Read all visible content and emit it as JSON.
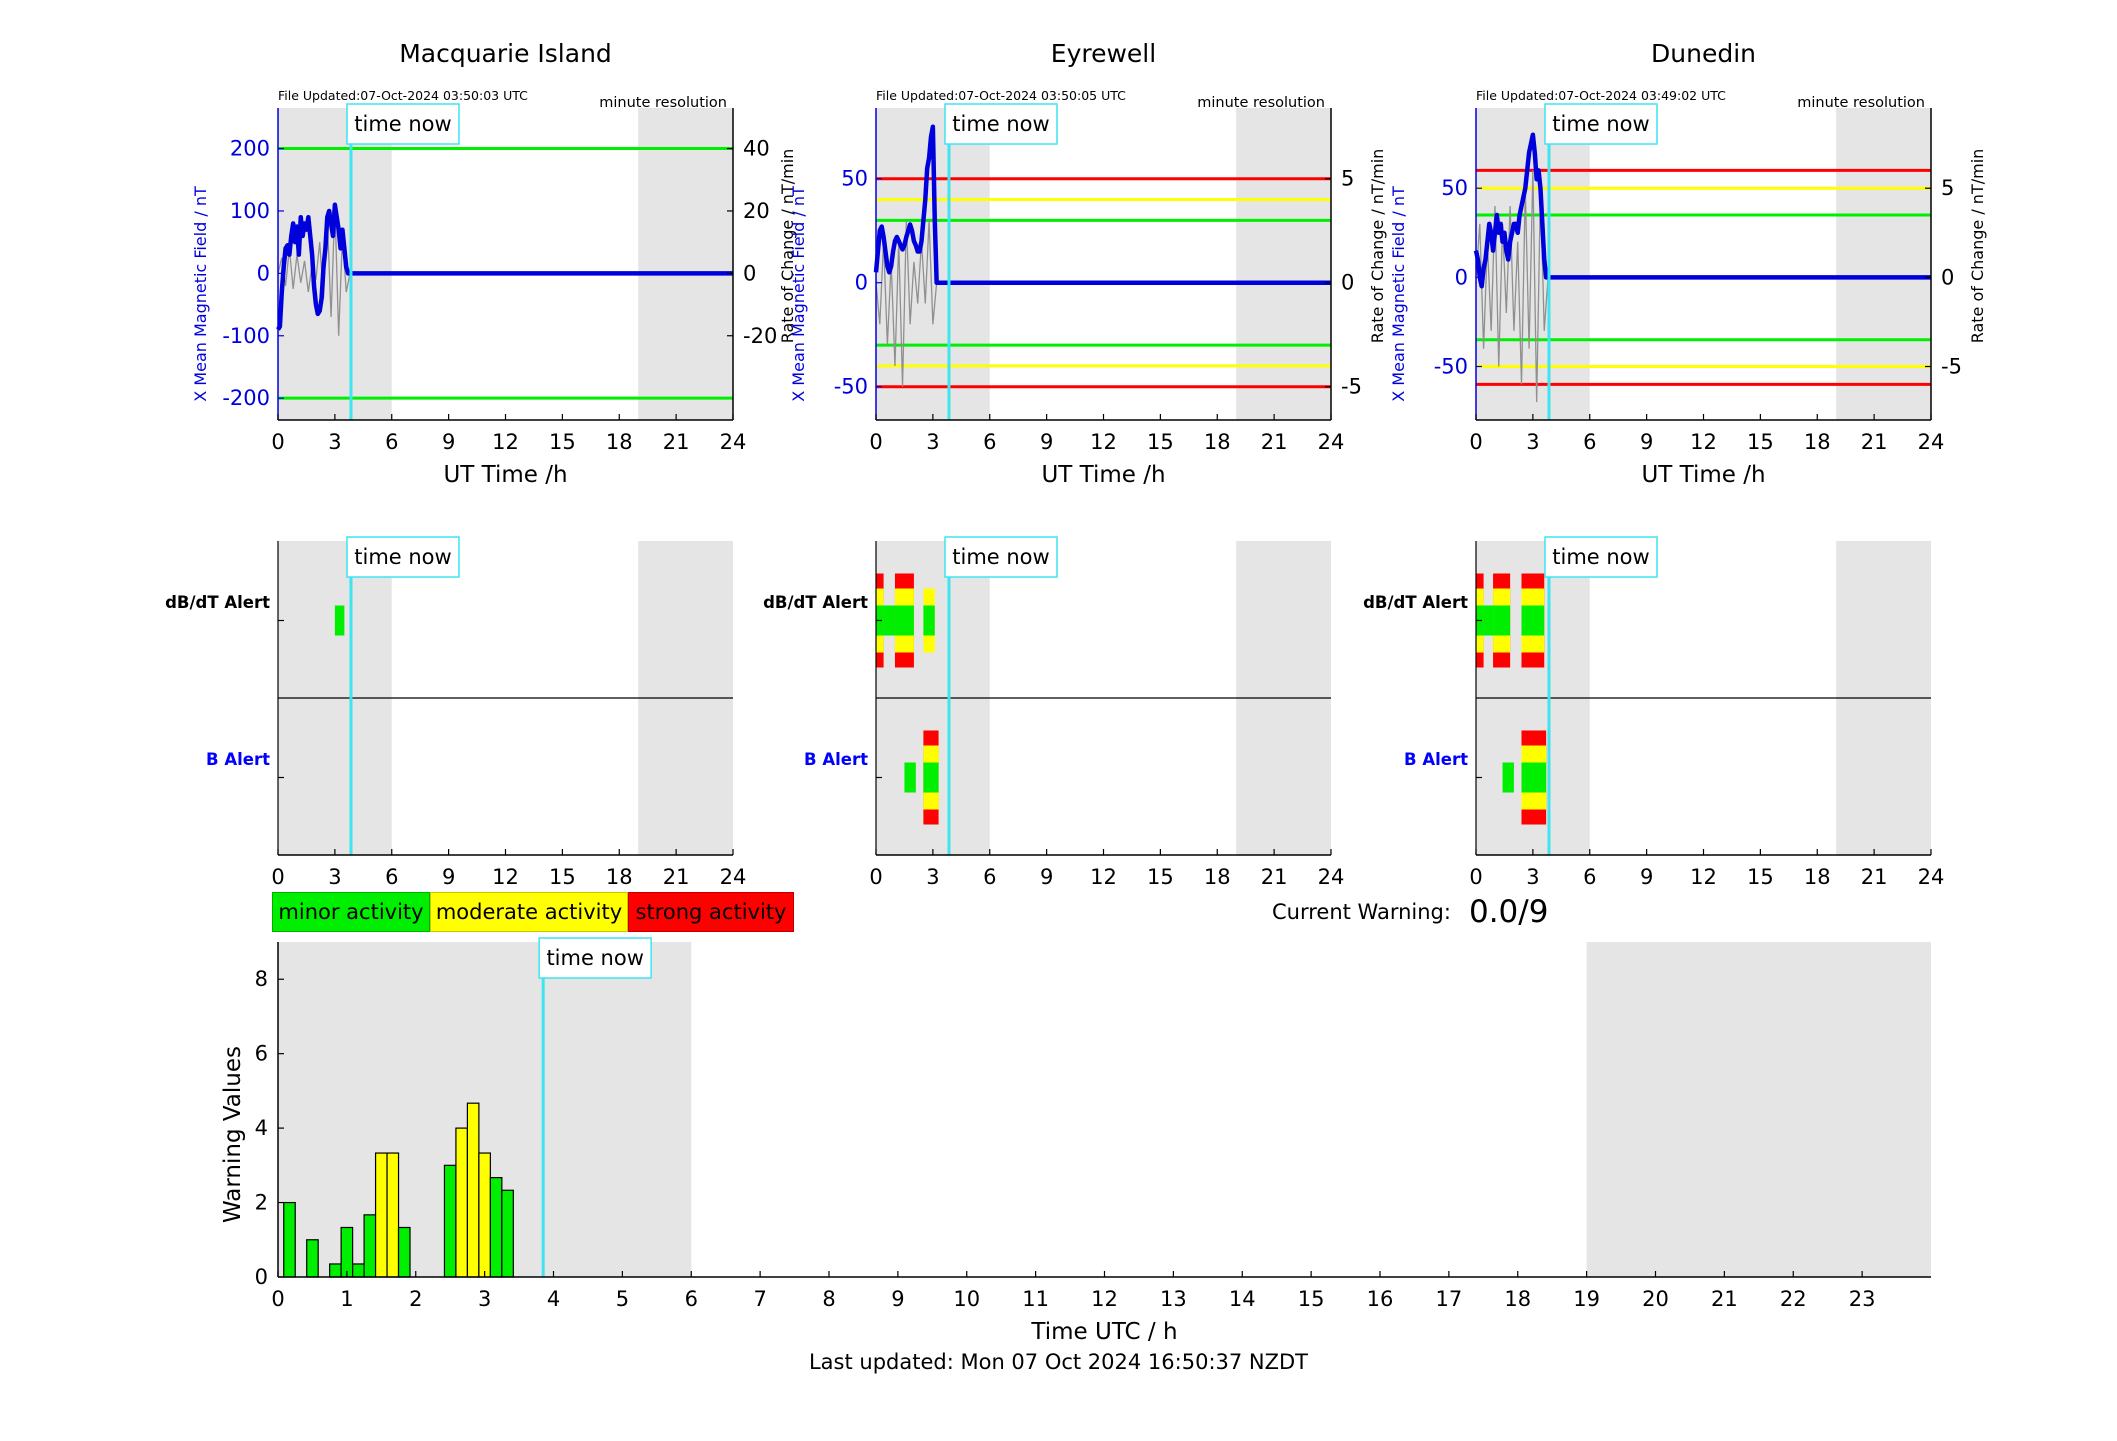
{
  "colors": {
    "shade": "#e5e5e5",
    "field": "#0000dd",
    "rate": "#909090",
    "timeNow": "#3ee4f0",
    "green": "#00ee00",
    "yellow": "#ffff00",
    "red": "#ff0000",
    "axis": "#000000"
  },
  "legend": {
    "minor": "minor activity",
    "moderate": "moderate activity",
    "strong": "strong activity"
  },
  "current_warning": {
    "label": "Current Warning:",
    "value": "0.0/9"
  },
  "footer": {
    "last_updated": "Last updated: Mon 07 Oct 2024 16:50:37 NZDT"
  },
  "chart_data": [
    {
      "type": "line",
      "id": "macquarie-field",
      "title": "Macquarie Island",
      "file_updated": "File Updated:07-Oct-2024 03:50:03 UTC",
      "resolution": "minute resolution",
      "time_now_label": "time now",
      "time_now": 3.85,
      "xlabel": "UT Time /h",
      "ylabel_left": "X Mean Magnetic Field / nT",
      "ylabel_right": "Rate of Change / nT/min",
      "xlim": [
        0,
        24
      ],
      "xticks": [
        0,
        3,
        6,
        9,
        12,
        15,
        18,
        21,
        24
      ],
      "ylim_left": [
        -235,
        265
      ],
      "yticks_left": [
        -200,
        -100,
        0,
        100,
        200
      ],
      "ylim_right": [
        -47,
        53
      ],
      "yticks_right": [
        -20,
        0,
        20,
        40
      ],
      "shaded": [
        [
          0,
          6
        ],
        [
          19,
          24
        ]
      ],
      "thresholds": [
        {
          "value": 200,
          "level": "minor"
        },
        {
          "value": -200,
          "level": "minor"
        }
      ],
      "series": [
        {
          "axis": "left",
          "x": [
            0,
            0.1,
            0.2,
            0.3,
            0.4,
            0.5,
            0.6,
            0.7,
            0.8,
            0.9,
            1.0,
            1.1,
            1.2,
            1.3,
            1.4,
            1.5,
            1.6,
            1.7,
            1.8,
            1.9,
            2.0,
            2.1,
            2.2,
            2.3,
            2.4,
            2.5,
            2.6,
            2.7,
            2.8,
            2.9,
            3.0,
            3.1,
            3.2,
            3.3,
            3.4,
            3.5,
            3.6,
            3.7,
            3.8,
            24
          ],
          "y": [
            -90,
            -85,
            -30,
            10,
            40,
            45,
            30,
            60,
            80,
            50,
            75,
            30,
            90,
            60,
            80,
            70,
            90,
            60,
            30,
            -20,
            -50,
            -65,
            -60,
            -40,
            10,
            40,
            90,
            100,
            80,
            60,
            110,
            90,
            70,
            40,
            70,
            40,
            10,
            0,
            0,
            0
          ]
        },
        {
          "axis": "right",
          "x": [
            0,
            0.2,
            0.4,
            0.6,
            0.8,
            1.0,
            1.2,
            1.4,
            1.6,
            1.8,
            2.0,
            2.2,
            2.4,
            2.6,
            2.8,
            3.0,
            3.2,
            3.4,
            3.6,
            3.8,
            24
          ],
          "y": [
            0,
            5,
            -4,
            8,
            -5,
            6,
            -3,
            4,
            -6,
            3,
            -2,
            10,
            -8,
            18,
            -14,
            22,
            -20,
            12,
            -6,
            0,
            0
          ]
        }
      ]
    },
    {
      "type": "line",
      "id": "eyrewell-field",
      "title": "Eyrewell",
      "file_updated": "File Updated:07-Oct-2024 03:50:05 UTC",
      "resolution": "minute resolution",
      "time_now_label": "time now",
      "time_now": 3.85,
      "xlabel": "UT Time /h",
      "ylabel_left": "X Mean Magnetic Field / nT",
      "ylabel_right": "Rate of Change / nT/min",
      "xlim": [
        0,
        24
      ],
      "xticks": [
        0,
        3,
        6,
        9,
        12,
        15,
        18,
        21,
        24
      ],
      "ylim_left": [
        -66,
        84
      ],
      "yticks_left": [
        -50,
        0,
        50
      ],
      "ylim_right": [
        -6.6,
        8.4
      ],
      "yticks_right": [
        -5,
        0,
        5
      ],
      "shaded": [
        [
          0,
          6
        ],
        [
          19,
          24
        ]
      ],
      "thresholds": [
        {
          "value": 50,
          "level": "strong"
        },
        {
          "value": 40,
          "level": "moderate"
        },
        {
          "value": 30,
          "level": "minor"
        },
        {
          "value": -30,
          "level": "minor"
        },
        {
          "value": -40,
          "level": "moderate"
        },
        {
          "value": -50,
          "level": "strong"
        }
      ],
      "series": [
        {
          "axis": "left",
          "x": [
            0,
            0.1,
            0.2,
            0.3,
            0.4,
            0.5,
            0.6,
            0.7,
            0.8,
            0.9,
            1.0,
            1.1,
            1.2,
            1.3,
            1.4,
            1.5,
            1.6,
            1.7,
            1.8,
            1.9,
            2.0,
            2.1,
            2.2,
            2.3,
            2.4,
            2.5,
            2.6,
            2.7,
            2.8,
            2.9,
            3.0,
            3.1,
            3.2,
            3.4,
            3.6,
            3.8,
            24
          ],
          "y": [
            5,
            15,
            25,
            27,
            22,
            15,
            8,
            5,
            8,
            15,
            20,
            22,
            20,
            18,
            16,
            18,
            22,
            25,
            28,
            25,
            20,
            18,
            15,
            15,
            20,
            30,
            40,
            55,
            60,
            70,
            75,
            30,
            0,
            0,
            0,
            0,
            0
          ]
        },
        {
          "axis": "right",
          "x": [
            0,
            0.2,
            0.4,
            0.6,
            0.8,
            1.0,
            1.2,
            1.4,
            1.6,
            1.8,
            2.0,
            2.2,
            2.4,
            2.6,
            2.8,
            3.0,
            3.2,
            3.4,
            24
          ],
          "y": [
            0,
            -2,
            2,
            -3,
            1,
            -4,
            2,
            -5,
            3,
            -2,
            1,
            -1,
            2,
            -1,
            3,
            -2,
            0,
            0,
            0
          ]
        }
      ]
    },
    {
      "type": "line",
      "id": "dunedin-field",
      "title": "Dunedin",
      "file_updated": "File Updated:07-Oct-2024 03:49:02 UTC",
      "resolution": "minute resolution",
      "time_now_label": "time now",
      "time_now": 3.85,
      "xlabel": "UT Time /h",
      "ylabel_left": "X Mean Magnetic Field / nT",
      "ylabel_right": "Rate of Change / nT/min",
      "xlim": [
        0,
        24
      ],
      "xticks": [
        0,
        3,
        6,
        9,
        12,
        15,
        18,
        21,
        24
      ],
      "ylim_left": [
        -80,
        95
      ],
      "yticks_left": [
        -50,
        0,
        50
      ],
      "ylim_right": [
        -8,
        9.5
      ],
      "yticks_right": [
        -5,
        0,
        5
      ],
      "shaded": [
        [
          0,
          6
        ],
        [
          19,
          24
        ]
      ],
      "thresholds": [
        {
          "value": 60,
          "level": "strong"
        },
        {
          "value": 50,
          "level": "moderate"
        },
        {
          "value": 35,
          "level": "minor"
        },
        {
          "value": -35,
          "level": "minor"
        },
        {
          "value": -50,
          "level": "moderate"
        },
        {
          "value": -60,
          "level": "strong"
        }
      ],
      "series": [
        {
          "axis": "left",
          "x": [
            0,
            0.1,
            0.2,
            0.3,
            0.4,
            0.5,
            0.6,
            0.7,
            0.8,
            0.9,
            1.0,
            1.1,
            1.2,
            1.3,
            1.4,
            1.5,
            1.6,
            1.7,
            1.8,
            1.9,
            2.0,
            2.1,
            2.2,
            2.3,
            2.4,
            2.5,
            2.6,
            2.7,
            2.8,
            2.9,
            3.0,
            3.1,
            3.2,
            3.3,
            3.4,
            3.5,
            3.6,
            3.7,
            3.8,
            24
          ],
          "y": [
            15,
            10,
            0,
            -5,
            5,
            10,
            20,
            30,
            25,
            15,
            25,
            35,
            25,
            30,
            20,
            25,
            15,
            10,
            20,
            25,
            30,
            30,
            25,
            35,
            40,
            45,
            50,
            60,
            70,
            75,
            80,
            70,
            55,
            60,
            50,
            30,
            10,
            0,
            0,
            0
          ]
        },
        {
          "axis": "right",
          "x": [
            0,
            0.2,
            0.4,
            0.6,
            0.8,
            1.0,
            1.2,
            1.4,
            1.6,
            1.8,
            2.0,
            2.2,
            2.4,
            2.6,
            2.8,
            3.0,
            3.2,
            3.4,
            3.6,
            3.8,
            24
          ],
          "y": [
            0,
            3,
            -4,
            2,
            -3,
            4,
            -5,
            3,
            -2,
            4,
            -3,
            2,
            -6,
            5,
            -4,
            6,
            -7,
            5,
            -3,
            0,
            0
          ]
        }
      ]
    },
    {
      "type": "heatmap",
      "id": "macquarie-alerts",
      "xlim": [
        0,
        24
      ],
      "xticks": [
        0,
        3,
        6,
        9,
        12,
        15,
        18,
        21,
        24
      ],
      "time_now_label": "time now",
      "time_now": 3.85,
      "shaded": [
        [
          0,
          6
        ],
        [
          19,
          24
        ]
      ],
      "rows": [
        {
          "label": "dB/dT Alert",
          "label_color": "#000000",
          "blocks": [
            {
              "start": 3.0,
              "end": 3.5,
              "level": 1
            }
          ]
        },
        {
          "label": "B Alert",
          "label_color": "#0000ff",
          "blocks": []
        }
      ]
    },
    {
      "type": "heatmap",
      "id": "eyrewell-alerts",
      "xlim": [
        0,
        24
      ],
      "xticks": [
        0,
        3,
        6,
        9,
        12,
        15,
        18,
        21,
        24
      ],
      "time_now_label": "time now",
      "time_now": 3.85,
      "shaded": [
        [
          0,
          6
        ],
        [
          19,
          24
        ]
      ],
      "rows": [
        {
          "label": "dB/dT Alert",
          "label_color": "#000000",
          "blocks": [
            {
              "start": 0.0,
              "end": 0.4,
              "level": 3
            },
            {
              "start": 0.4,
              "end": 1.0,
              "level": 1
            },
            {
              "start": 1.0,
              "end": 2.0,
              "level": 3
            },
            {
              "start": 2.5,
              "end": 3.1,
              "level": 2
            }
          ]
        },
        {
          "label": "B Alert",
          "label_color": "#0000ff",
          "blocks": [
            {
              "start": 1.5,
              "end": 2.1,
              "level": 1
            },
            {
              "start": 2.5,
              "end": 3.3,
              "level": 3
            }
          ]
        }
      ]
    },
    {
      "type": "heatmap",
      "id": "dunedin-alerts",
      "xlim": [
        0,
        24
      ],
      "xticks": [
        0,
        3,
        6,
        9,
        12,
        15,
        18,
        21,
        24
      ],
      "time_now_label": "time now",
      "time_now": 3.85,
      "shaded": [
        [
          0,
          6
        ],
        [
          19,
          24
        ]
      ],
      "rows": [
        {
          "label": "dB/dT Alert",
          "label_color": "#000000",
          "blocks": [
            {
              "start": 0.0,
              "end": 0.4,
              "level": 3
            },
            {
              "start": 0.4,
              "end": 0.9,
              "level": 1
            },
            {
              "start": 0.9,
              "end": 1.8,
              "level": 3
            },
            {
              "start": 2.4,
              "end": 3.6,
              "level": 3
            }
          ]
        },
        {
          "label": "B Alert",
          "label_color": "#0000ff",
          "blocks": [
            {
              "start": 1.4,
              "end": 2.0,
              "level": 1
            },
            {
              "start": 2.4,
              "end": 3.7,
              "level": 3
            }
          ]
        }
      ]
    },
    {
      "type": "bar",
      "id": "warning-values",
      "xlabel": "Time UTC / h",
      "ylabel": "Warning Values",
      "xlim": [
        0,
        24
      ],
      "xticks": [
        0,
        1,
        2,
        3,
        4,
        5,
        6,
        7,
        8,
        9,
        10,
        11,
        12,
        13,
        14,
        15,
        16,
        17,
        18,
        19,
        20,
        21,
        22,
        23
      ],
      "ylim": [
        0,
        9
      ],
      "yticks": [
        0,
        2,
        4,
        6,
        8
      ],
      "time_now_label": "time now",
      "time_now": 3.85,
      "shaded": [
        [
          0,
          6
        ],
        [
          19,
          24
        ]
      ],
      "bar_width": 0.1667,
      "x": [
        0.1667,
        0.5,
        0.8333,
        1.0,
        1.1667,
        1.3333,
        1.5,
        1.6667,
        1.8333,
        2.5,
        2.6667,
        2.8333,
        3.0,
        3.1667,
        3.3333
      ],
      "values": [
        2.0,
        1.0,
        0.35,
        1.33,
        0.35,
        1.67,
        3.33,
        3.33,
        1.33,
        3.0,
        4.0,
        4.67,
        3.33,
        2.67,
        2.33
      ],
      "levels": [
        1,
        1,
        1,
        1,
        1,
        1,
        2,
        2,
        1,
        1,
        2,
        2,
        2,
        1,
        1
      ]
    }
  ]
}
